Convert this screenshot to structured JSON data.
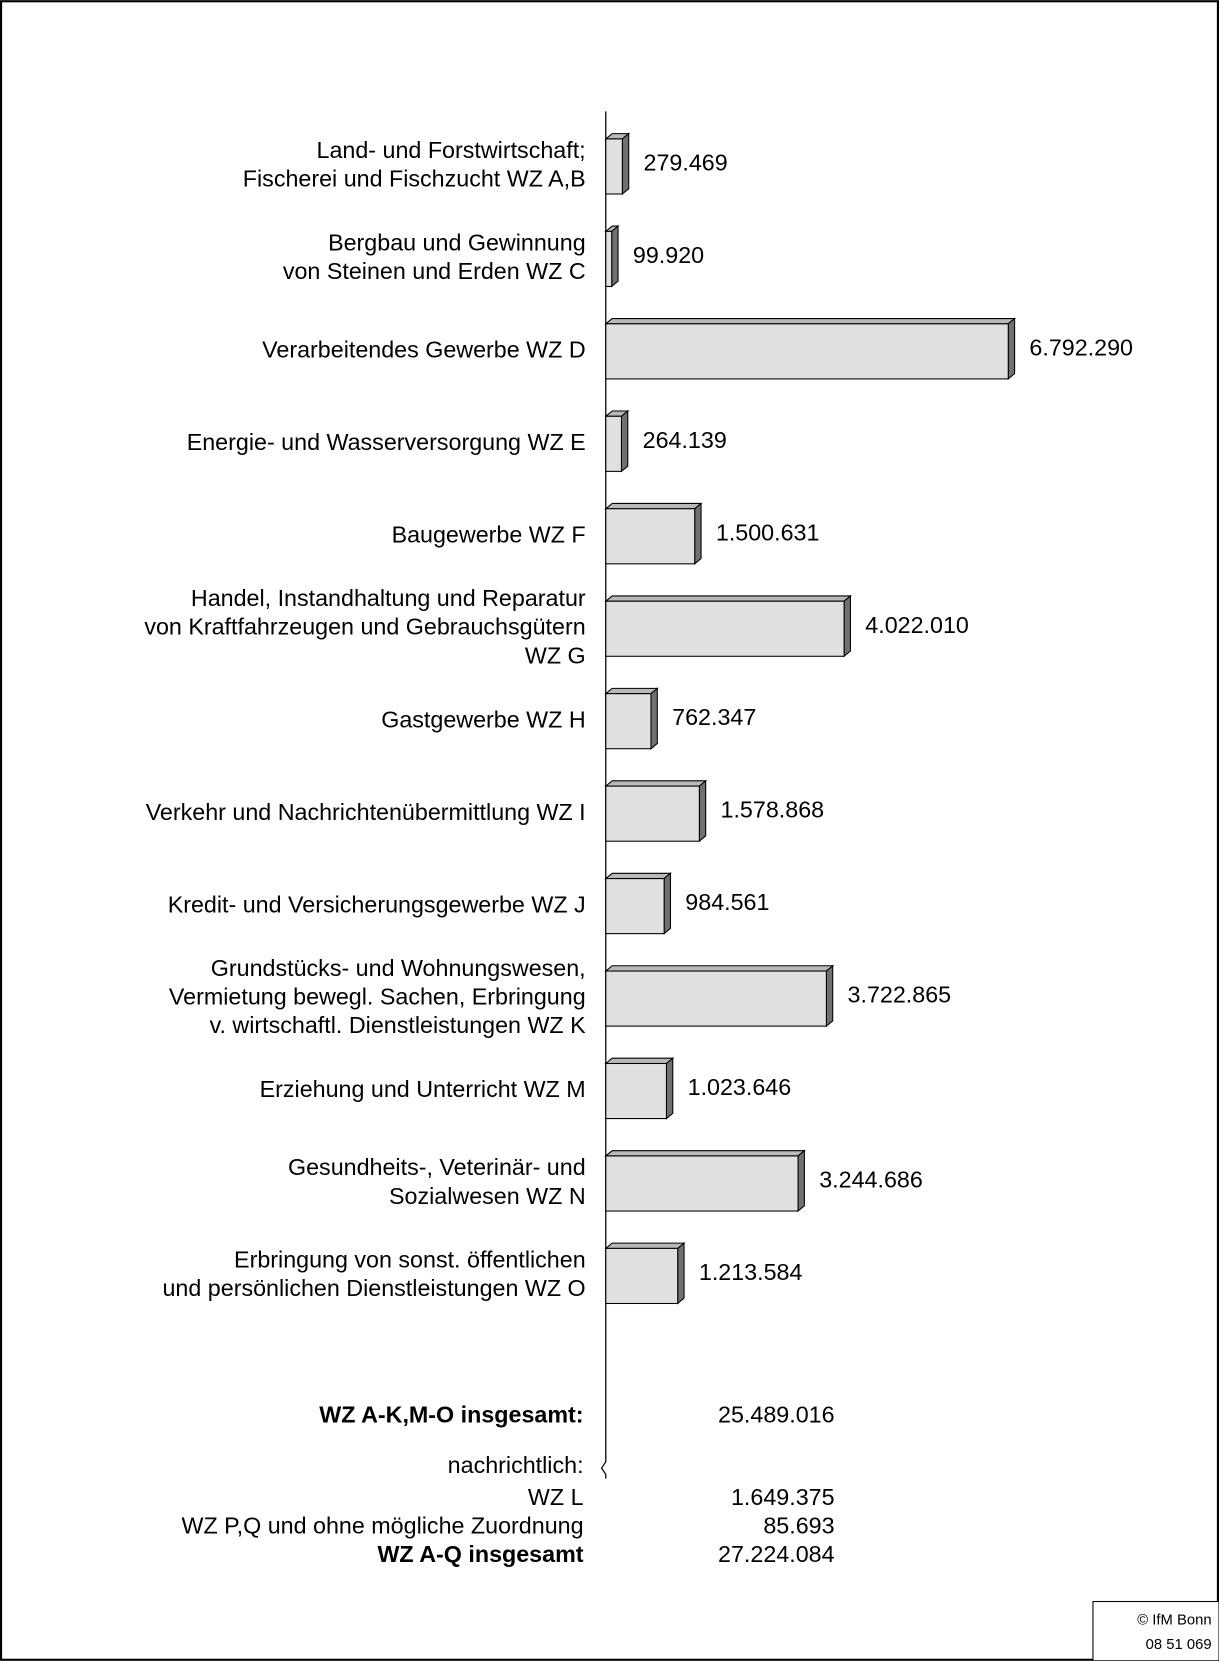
{
  "chart_data": {
    "type": "bar",
    "orientation": "horizontal",
    "style": "3d",
    "categories": [
      "Land- und Forstwirtschaft;\nFischerei und Fischzucht WZ A,B",
      "Bergbau und Gewinnung\nvon Steinen und Erden WZ C",
      "Verarbeitendes Gewerbe WZ D",
      "Energie- und Wasserversorgung WZ E",
      "Baugewerbe WZ F",
      "Handel, Instandhaltung und Reparatur\nvon Kraftfahrzeugen und Gebrauchsgütern\nWZ G",
      "Gastgewerbe WZ H",
      "Verkehr und Nachrichtenübermittlung WZ I",
      "Kredit- und Versicherungsgewerbe WZ J",
      "Grundstücks- und Wohnungswesen,\nVermietung bewegl. Sachen, Erbringung\nv. wirtschaftl. Dienstleistungen WZ K",
      "Erziehung und Unterricht WZ M",
      "Gesundheits-, Veterinär- und\nSozialwesen WZ N",
      "Erbringung von sonst. öffentlichen\nund persönlichen Dienstleistungen WZ O"
    ],
    "values": [
      279469,
      99920,
      6792290,
      264139,
      1500631,
      4022010,
      762347,
      1578868,
      984561,
      3722865,
      1023646,
      3244686,
      1213584
    ],
    "value_labels": [
      "279.469",
      "99.920",
      "6.792.290",
      "264.139",
      "1.500.631",
      "4.022.010",
      "762.347",
      "1.578.868",
      "984.561",
      "3.722.865",
      "1.023.646",
      "3.244.686",
      "1.213.584"
    ],
    "color": "#e0e0e0"
  },
  "summary": {
    "rows": [
      {
        "label": "WZ A-K,M-O insgesamt:",
        "value": "25.489.016",
        "bold": true
      },
      {
        "label": "nachrichtlich:"
      },
      {
        "label": "WZ L",
        "value": "1.649.375"
      },
      {
        "label": "WZ P,Q und ohne mögliche Zuordnung",
        "value": "85.693"
      },
      {
        "label": "WZ A-Q insgesamt",
        "value": "27.224.084",
        "bold": true
      }
    ]
  },
  "footer": {
    "copyright": "© IfM Bonn",
    "code": "08 51 069"
  }
}
